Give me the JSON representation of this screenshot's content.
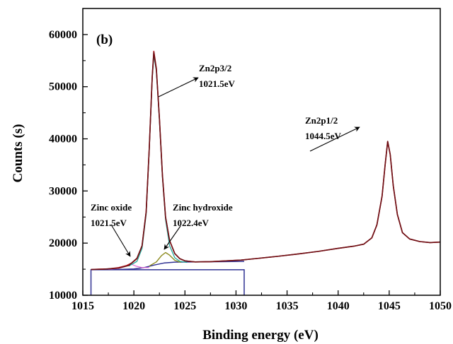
{
  "chart_data": {
    "type": "line",
    "panel_label": "(b)",
    "xlabel": "Binding energy (eV)",
    "ylabel": "Counts (s)",
    "xlim": [
      1015,
      1050
    ],
    "ylim": [
      10000,
      65000
    ],
    "x_ticks": [
      1015,
      1020,
      1025,
      1030,
      1035,
      1040,
      1045,
      1050
    ],
    "y_ticks": [
      10000,
      20000,
      30000,
      40000,
      50000,
      60000
    ],
    "grid": false,
    "colors": {
      "raw": "#c0141e",
      "fit": "#6b0f14",
      "zn2p32": "#22a89a",
      "zinc_oxide": "#e06bd8",
      "zinc_hydroxide": "#8c8a1e",
      "background": "#2f3192"
    },
    "series": [
      {
        "key": "raw",
        "points": [
          [
            1015.8,
            14950
          ],
          [
            1016.5,
            15000
          ],
          [
            1017.5,
            15050
          ],
          [
            1018.5,
            15300
          ],
          [
            1019.3,
            15700
          ],
          [
            1019.8,
            16200
          ],
          [
            1020.3,
            17000
          ],
          [
            1020.8,
            19500
          ],
          [
            1021.2,
            26000
          ],
          [
            1021.5,
            38000
          ],
          [
            1021.8,
            52000
          ],
          [
            1021.95,
            56800
          ],
          [
            1022.2,
            53500
          ],
          [
            1022.5,
            44000
          ],
          [
            1022.8,
            33000
          ],
          [
            1023.1,
            25000
          ],
          [
            1023.5,
            20500
          ],
          [
            1024.0,
            18000
          ],
          [
            1024.5,
            17000
          ],
          [
            1025.0,
            16600
          ],
          [
            1026.0,
            16400
          ],
          [
            1027.5,
            16450
          ],
          [
            1029.0,
            16600
          ],
          [
            1030.5,
            16750
          ],
          [
            1032.0,
            17050
          ],
          [
            1034.0,
            17450
          ],
          [
            1036.0,
            17900
          ],
          [
            1038.0,
            18400
          ],
          [
            1040.0,
            19000
          ],
          [
            1041.5,
            19400
          ],
          [
            1042.5,
            19800
          ],
          [
            1043.3,
            21000
          ],
          [
            1043.8,
            23500
          ],
          [
            1044.3,
            29000
          ],
          [
            1044.6,
            35000
          ],
          [
            1044.85,
            39500
          ],
          [
            1045.1,
            37000
          ],
          [
            1045.4,
            31000
          ],
          [
            1045.8,
            25500
          ],
          [
            1046.3,
            22000
          ],
          [
            1047.0,
            20800
          ],
          [
            1048.0,
            20300
          ],
          [
            1049.0,
            20100
          ],
          [
            1050.0,
            20200
          ]
        ]
      },
      {
        "key": "fit",
        "points": [
          [
            1015.8,
            14950
          ],
          [
            1017.0,
            15000
          ],
          [
            1018.5,
            15200
          ],
          [
            1019.5,
            15700
          ],
          [
            1020.3,
            17100
          ],
          [
            1020.8,
            19500
          ],
          [
            1021.2,
            26000
          ],
          [
            1021.5,
            38000
          ],
          [
            1021.8,
            52000
          ],
          [
            1021.95,
            56600
          ],
          [
            1022.2,
            53300
          ],
          [
            1022.5,
            44000
          ],
          [
            1022.8,
            33000
          ],
          [
            1023.1,
            25000
          ],
          [
            1023.5,
            20500
          ],
          [
            1024.0,
            18000
          ],
          [
            1024.5,
            17000
          ],
          [
            1025.0,
            16600
          ],
          [
            1026.0,
            16400
          ],
          [
            1027.5,
            16450
          ],
          [
            1029.0,
            16600
          ],
          [
            1030.5,
            16750
          ],
          [
            1032.0,
            17050
          ],
          [
            1034.0,
            17450
          ],
          [
            1036.0,
            17900
          ],
          [
            1038.0,
            18400
          ],
          [
            1040.0,
            19000
          ],
          [
            1041.5,
            19400
          ],
          [
            1042.5,
            19800
          ],
          [
            1043.3,
            21000
          ],
          [
            1043.8,
            23500
          ],
          [
            1044.3,
            29000
          ],
          [
            1044.6,
            35000
          ],
          [
            1044.85,
            39500
          ],
          [
            1045.1,
            37000
          ],
          [
            1045.4,
            31000
          ],
          [
            1045.8,
            25500
          ],
          [
            1046.3,
            22000
          ],
          [
            1047.0,
            20800
          ],
          [
            1048.0,
            20300
          ],
          [
            1049.0,
            20100
          ],
          [
            1050.0,
            20200
          ]
        ]
      },
      {
        "key": "zn2p32",
        "points": [
          [
            1019.5,
            15600
          ],
          [
            1020.3,
            16500
          ],
          [
            1020.8,
            19000
          ],
          [
            1021.2,
            25500
          ],
          [
            1021.5,
            37500
          ],
          [
            1021.8,
            51500
          ],
          [
            1021.95,
            56000
          ],
          [
            1022.2,
            53000
          ],
          [
            1022.5,
            43500
          ],
          [
            1022.8,
            32500
          ],
          [
            1023.1,
            24500
          ],
          [
            1023.5,
            19500
          ],
          [
            1024.0,
            17200
          ],
          [
            1024.5,
            16500
          ],
          [
            1025.2,
            16300
          ]
        ]
      },
      {
        "key": "zinc_oxide",
        "points": [
          [
            1017.5,
            15000
          ],
          [
            1018.5,
            15150
          ],
          [
            1019.2,
            15600
          ],
          [
            1019.7,
            16000
          ],
          [
            1020.2,
            15600
          ],
          [
            1020.8,
            15300
          ],
          [
            1021.5,
            15300
          ]
        ]
      },
      {
        "key": "zinc_hydroxide",
        "points": [
          [
            1021.5,
            15600
          ],
          [
            1022.2,
            16400
          ],
          [
            1022.7,
            17600
          ],
          [
            1023.1,
            18200
          ],
          [
            1023.5,
            17700
          ],
          [
            1024.0,
            16700
          ],
          [
            1024.6,
            16300
          ]
        ]
      },
      {
        "key": "background",
        "points": [
          [
            1015.8,
            14900
          ],
          [
            1018.5,
            14950
          ],
          [
            1020.0,
            15050
          ],
          [
            1021.0,
            15300
          ],
          [
            1022.0,
            15800
          ],
          [
            1023.0,
            16200
          ],
          [
            1024.0,
            16350
          ],
          [
            1026.0,
            16400
          ],
          [
            1029.0,
            16450
          ],
          [
            1030.8,
            16500
          ]
        ]
      }
    ],
    "background_box": {
      "x0": 1015.8,
      "x1": 1030.8,
      "y_top": 14900
    },
    "annotations": [
      {
        "lines": [
          "Zn2p3/2",
          "1021.5eV"
        ]
      },
      {
        "lines": [
          "Zn2p1/2",
          "1044.5eV"
        ]
      },
      {
        "lines": [
          "Zinc oxide",
          "1021.5eV"
        ]
      },
      {
        "lines": [
          "Zinc hydroxide",
          "1022.4eV"
        ]
      }
    ]
  }
}
